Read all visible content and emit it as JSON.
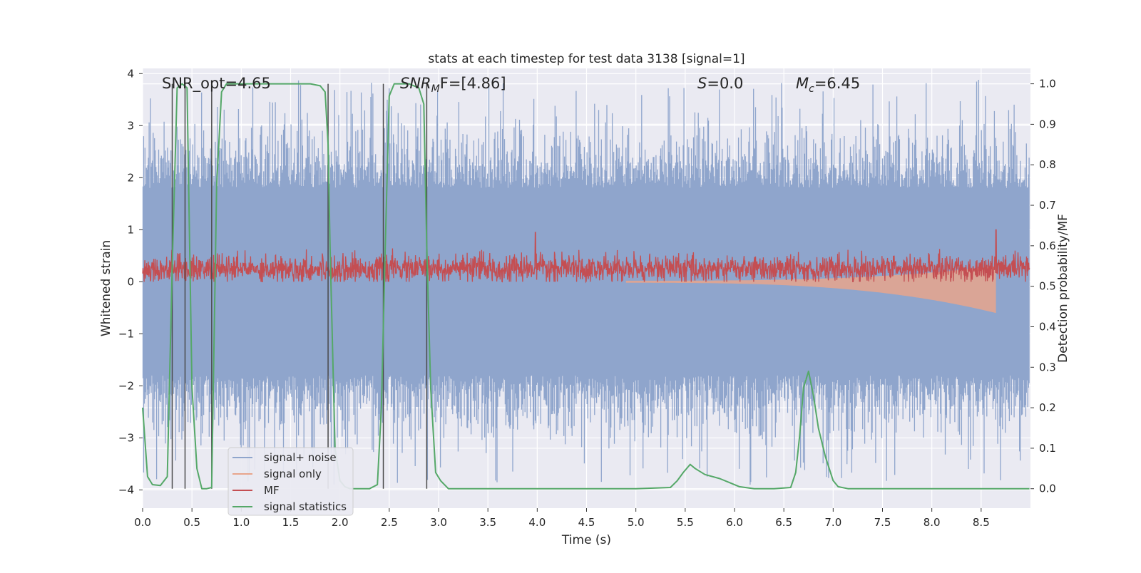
{
  "chart_data": {
    "type": "line",
    "title": "stats at each timestep for test data 3138 [signal=1]",
    "xlabel": "Time (s)",
    "ylabel_left": "Whitened strain",
    "ylabel_right": "Detection probability/MF",
    "xlim": [
      0.0,
      9.0
    ],
    "ylim_left": [
      -4.35,
      4.1
    ],
    "ylim_right": [
      -0.048,
      1.038
    ],
    "x_ticks": [
      "0.0",
      "0.5",
      "1.0",
      "1.5",
      "2.0",
      "2.5",
      "3.0",
      "3.5",
      "4.0",
      "4.5",
      "5.0",
      "5.5",
      "6.0",
      "6.5",
      "7.0",
      "7.5",
      "8.0",
      "8.5"
    ],
    "y_left_ticks": [
      "4",
      "3",
      "2",
      "1",
      "0",
      "−1",
      "−2",
      "−3",
      "−4"
    ],
    "y_right_ticks": [
      "1.0",
      "0.9",
      "0.8",
      "0.7",
      "0.6",
      "0.5",
      "0.4",
      "0.3",
      "0.2",
      "0.1",
      "0.0"
    ],
    "grid": true,
    "legend_position": "lower-left",
    "annotations": {
      "snr_opt": "SNR_opt=4.65",
      "snr_mf_main": "SNR",
      "snr_mf_sub": "M",
      "snr_mf_rest": "F=[4.86]",
      "s_main": "S",
      "s_rest": "=0.0",
      "mc_main": "M",
      "mc_sub": "c",
      "mc_rest": "=6.45"
    },
    "series": [
      {
        "name": "signal+ noise",
        "color": "#8fa5cc",
        "description_values": {
          "x_range": [
            0.0,
            8.99
          ],
          "typical_envelope": [
            -2.5,
            2.4
          ],
          "peak_range": [
            -3.9,
            3.9
          ]
        }
      },
      {
        "name": "signal only",
        "color": "#e8a58c",
        "chirp": {
          "start": 4.9,
          "end": 8.65,
          "final_low": -0.6,
          "final_high": 0.3
        }
      },
      {
        "name": "MF",
        "color": "#c44e52",
        "description_values": {
          "x_range": [
            0.0,
            8.99
          ],
          "baseline": 0.25,
          "range": [
            0.0,
            0.75
          ],
          "spikes": [
            [
              3.98,
              0.95
            ],
            [
              8.65,
              1.0
            ]
          ]
        }
      },
      {
        "name": "signal statistics",
        "color": "#55a868",
        "axis": "right",
        "x": [
          0.0,
          0.05,
          0.1,
          0.18,
          0.25,
          0.3,
          0.35,
          0.4,
          0.45,
          0.5,
          0.55,
          0.6,
          0.65,
          0.7,
          0.75,
          0.8,
          0.85,
          0.9,
          1.0,
          1.2,
          1.5,
          1.7,
          1.8,
          1.85,
          1.88,
          1.9,
          1.95,
          2.0,
          2.05,
          2.1,
          2.2,
          2.3,
          2.38,
          2.42,
          2.46,
          2.5,
          2.55,
          2.6,
          2.7,
          2.8,
          2.85,
          2.88,
          2.92,
          2.97,
          3.02,
          3.1,
          3.5,
          4.0,
          5.0,
          5.35,
          5.42,
          5.48,
          5.55,
          5.6,
          5.7,
          5.85,
          5.95,
          6.05,
          6.2,
          6.4,
          6.57,
          6.62,
          6.66,
          6.7,
          6.75,
          6.8,
          6.85,
          6.92,
          7.0,
          7.05,
          7.15,
          7.3,
          8.0,
          8.99
        ],
        "y": [
          0.2,
          0.03,
          0.01,
          0.008,
          0.03,
          0.55,
          0.99,
          1.0,
          0.99,
          0.25,
          0.05,
          0.0,
          0.0,
          0.003,
          0.75,
          0.98,
          1.0,
          1.0,
          1.0,
          1.0,
          1.0,
          1.0,
          0.995,
          0.98,
          0.85,
          0.6,
          0.1,
          0.02,
          0.005,
          0.0,
          0.0,
          0.0,
          0.01,
          0.2,
          0.6,
          0.97,
          1.0,
          1.0,
          1.0,
          0.99,
          0.95,
          0.6,
          0.25,
          0.04,
          0.02,
          0.0,
          0.0,
          0.0,
          0.0,
          0.003,
          0.02,
          0.04,
          0.06,
          0.05,
          0.035,
          0.025,
          0.015,
          0.005,
          0.0,
          0.0,
          0.003,
          0.04,
          0.13,
          0.25,
          0.29,
          0.23,
          0.15,
          0.08,
          0.02,
          0.005,
          0.0,
          0.0,
          0.0,
          0.0
        ]
      }
    ],
    "vertical_markers": [
      0.3,
      0.43,
      0.7,
      1.88,
      2.44,
      2.88
    ],
    "marker_color": "#4a4a4a",
    "colors": {
      "background": "#eaeaf2",
      "grid": "#ffffff"
    }
  }
}
